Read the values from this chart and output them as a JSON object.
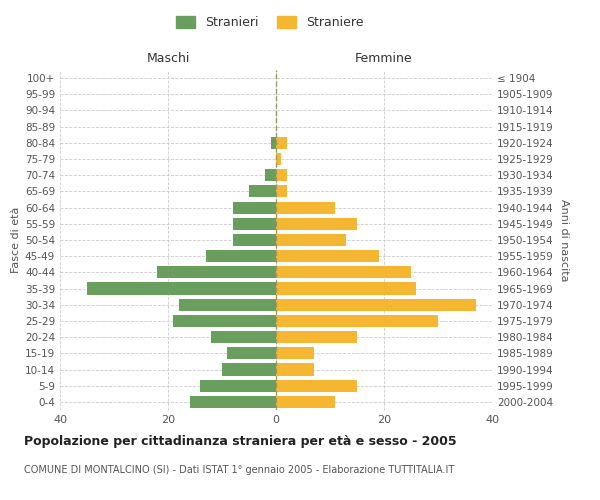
{
  "age_groups": [
    "100+",
    "95-99",
    "90-94",
    "85-89",
    "80-84",
    "75-79",
    "70-74",
    "65-69",
    "60-64",
    "55-59",
    "50-54",
    "45-49",
    "40-44",
    "35-39",
    "30-34",
    "25-29",
    "20-24",
    "15-19",
    "10-14",
    "5-9",
    "0-4"
  ],
  "birth_years": [
    "≤ 1904",
    "1905-1909",
    "1910-1914",
    "1915-1919",
    "1920-1924",
    "1925-1929",
    "1930-1934",
    "1935-1939",
    "1940-1944",
    "1945-1949",
    "1950-1954",
    "1955-1959",
    "1960-1964",
    "1965-1969",
    "1970-1974",
    "1975-1979",
    "1980-1984",
    "1985-1989",
    "1990-1994",
    "1995-1999",
    "2000-2004"
  ],
  "maschi": [
    0,
    0,
    0,
    0,
    1,
    0,
    2,
    5,
    8,
    8,
    8,
    13,
    22,
    35,
    18,
    19,
    12,
    9,
    10,
    14,
    16
  ],
  "femmine": [
    0,
    0,
    0,
    0,
    2,
    1,
    2,
    2,
    11,
    15,
    13,
    19,
    25,
    26,
    37,
    30,
    15,
    7,
    7,
    15,
    11
  ],
  "color_maschi": "#6a9e5e",
  "color_femmine": "#f5b731",
  "title": "Popolazione per cittadinanza straniera per età e sesso - 2005",
  "subtitle": "COMUNE DI MONTALCINO (SI) - Dati ISTAT 1° gennaio 2005 - Elaborazione TUTTITALIA.IT",
  "xlabel_left": "Maschi",
  "xlabel_right": "Femmine",
  "ylabel_left": "Fasce di età",
  "ylabel_right": "Anni di nascita",
  "legend_maschi": "Stranieri",
  "legend_femmine": "Straniere",
  "xlim": 40,
  "background_color": "#ffffff",
  "grid_color": "#cccccc"
}
